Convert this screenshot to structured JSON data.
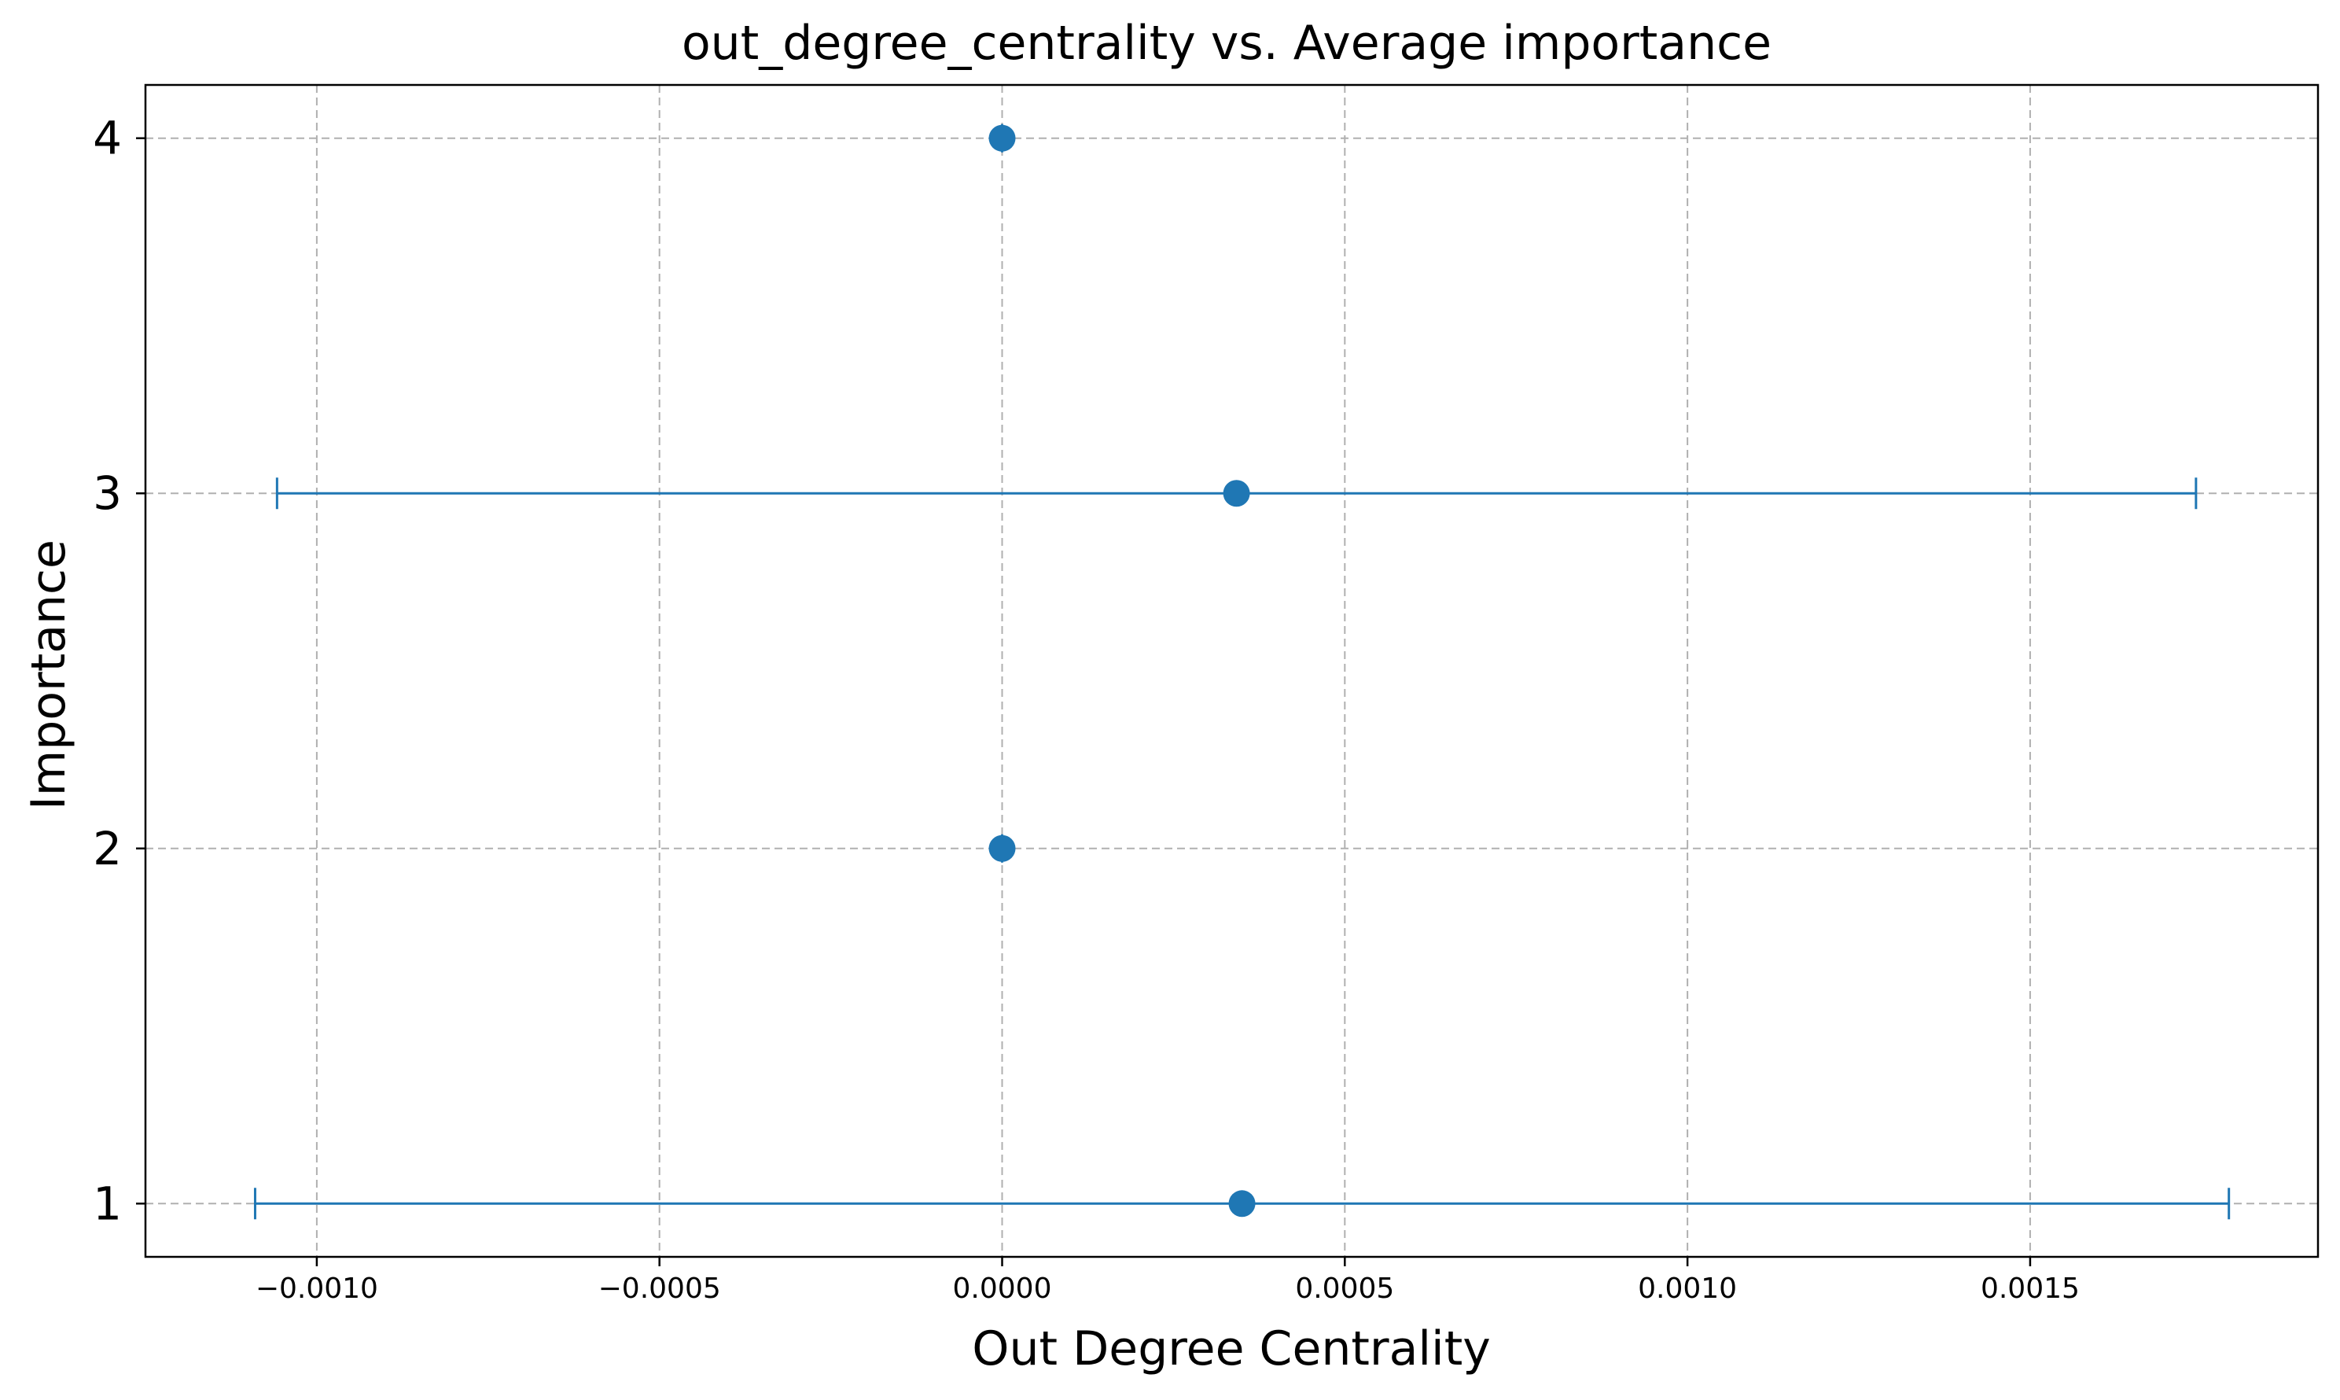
{
  "chart_data": {
    "type": "scatter",
    "title": "out_degree_centrality vs. Average importance",
    "xlabel": "Out Degree Centrality",
    "ylabel": "Importance",
    "xlim": [
      -0.00125,
      0.00192
    ],
    "ylim": [
      0.85,
      4.15
    ],
    "xticks": [
      -0.001,
      -0.0005,
      0.0,
      0.0005,
      0.001,
      0.0015
    ],
    "xtick_labels": [
      "−0.0010",
      "−0.0005",
      "0.0000",
      "0.0005",
      "0.0010",
      "0.0015"
    ],
    "yticks": [
      1,
      2,
      3,
      4
    ],
    "ytick_labels": [
      "1",
      "2",
      "3",
      "4"
    ],
    "grid": true,
    "points": [
      {
        "y": 1,
        "x": 0.00035,
        "xerr": 0.00144
      },
      {
        "y": 2,
        "x": 0.0,
        "xerr": 0.0
      },
      {
        "y": 3,
        "x": 0.000342,
        "xerr": 0.0014
      },
      {
        "y": 4,
        "x": 0.0,
        "xerr": 0.0
      }
    ],
    "color": "#1f77b4"
  }
}
